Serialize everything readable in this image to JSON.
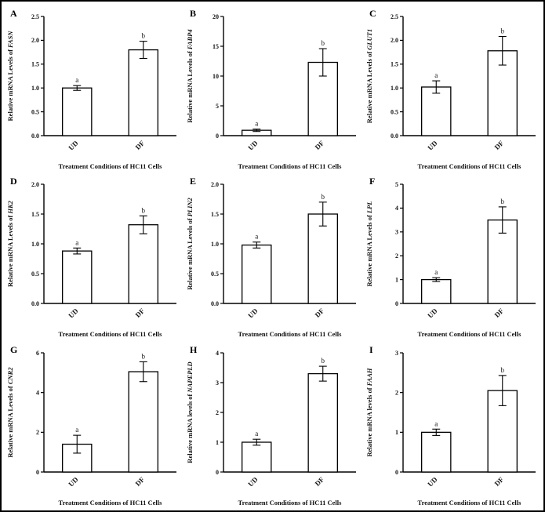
{
  "figure": {
    "type": "multi-panel-bar-figure",
    "xlabel": "Treatment Conditions of HC11 Cells",
    "categories": [
      "UD",
      "DF"
    ],
    "bar_fill": "#ffffff",
    "axis_color": "#000000"
  },
  "chart_data": [
    {
      "type": "bar",
      "panel": "A",
      "ylabel_prefix": "Relative mRNA Levels of ",
      "gene": "FASN",
      "xlabel": "Treatment Conditions of HC11 Cells",
      "categories": [
        "UD",
        "DF"
      ],
      "values": [
        1.0,
        1.8
      ],
      "errors": [
        0.05,
        0.18
      ],
      "sig_labels": [
        "a",
        "b"
      ],
      "ylim": [
        0,
        2.5
      ],
      "ytick_step": 0.5,
      "ytick_decimals": 1
    },
    {
      "type": "bar",
      "panel": "B",
      "ylabel_prefix": "Relative mRNA Levels of ",
      "gene": "FABP4",
      "xlabel": "Treatment Conditions of HC11 Cells",
      "categories": [
        "UD",
        "DF"
      ],
      "values": [
        0.9,
        12.3
      ],
      "errors": [
        0.2,
        2.3
      ],
      "sig_labels": [
        "a",
        "b"
      ],
      "ylim": [
        0,
        20
      ],
      "ytick_step": 5,
      "ytick_decimals": 0
    },
    {
      "type": "bar",
      "panel": "C",
      "ylabel_prefix": "Relative mRNA Levels of ",
      "gene": "GLUT1",
      "xlabel": "Treatment Conditions of HC11 Cells",
      "categories": [
        "UD",
        "DF"
      ],
      "values": [
        1.02,
        1.78
      ],
      "errors": [
        0.13,
        0.3
      ],
      "sig_labels": [
        "a",
        "b"
      ],
      "ylim": [
        0,
        2.5
      ],
      "ytick_step": 0.5,
      "ytick_decimals": 1
    },
    {
      "type": "bar",
      "panel": "D",
      "ylabel_prefix": "Relative mRNA Levels of ",
      "gene": "HK2",
      "xlabel": "Treatment Conditions of HC11 Cells",
      "categories": [
        "UD",
        "DF"
      ],
      "values": [
        0.88,
        1.32
      ],
      "errors": [
        0.05,
        0.15
      ],
      "sig_labels": [
        "a",
        "b"
      ],
      "ylim": [
        0,
        2.0
      ],
      "ytick_step": 0.5,
      "ytick_decimals": 1
    },
    {
      "type": "bar",
      "panel": "E",
      "ylabel_prefix": "Relative mRNA Levels of ",
      "gene": "PLIN2",
      "xlabel": "Treatment Conditions of HC11 Cells",
      "categories": [
        "UD",
        "DF"
      ],
      "values": [
        0.98,
        1.5
      ],
      "errors": [
        0.05,
        0.2
      ],
      "sig_labels": [
        "a",
        "b"
      ],
      "ylim": [
        0,
        2.0
      ],
      "ytick_step": 0.5,
      "ytick_decimals": 1
    },
    {
      "type": "bar",
      "panel": "F",
      "ylabel_prefix": "Relative mRNA Levels of ",
      "gene": "LPL",
      "xlabel": "Treatment Conditions of HC11 Cells",
      "categories": [
        "UD",
        "DF"
      ],
      "values": [
        1.0,
        3.5
      ],
      "errors": [
        0.08,
        0.55
      ],
      "sig_labels": [
        "a",
        "b"
      ],
      "ylim": [
        0,
        5
      ],
      "ytick_step": 1,
      "ytick_decimals": 0
    },
    {
      "type": "bar",
      "panel": "G",
      "ylabel_prefix": "Relative mRNA Levels of ",
      "gene": "CNR2",
      "xlabel": "Treatment Conditions of HC11 Cells",
      "categories": [
        "UD",
        "DF"
      ],
      "values": [
        1.4,
        5.05
      ],
      "errors": [
        0.45,
        0.5
      ],
      "sig_labels": [
        "a",
        "b"
      ],
      "ylim": [
        0,
        6
      ],
      "ytick_step": 2,
      "ytick_decimals": 0
    },
    {
      "type": "bar",
      "panel": "H",
      "ylabel_prefix": "Relative mRNA levels of ",
      "gene": "NAPEPLD",
      "xlabel": "Treatment Conditions of HC11 Cells",
      "categories": [
        "UD",
        "DF"
      ],
      "values": [
        1.0,
        3.3
      ],
      "errors": [
        0.1,
        0.25
      ],
      "sig_labels": [
        "a",
        "b"
      ],
      "ylim": [
        0,
        4
      ],
      "ytick_step": 1,
      "ytick_decimals": 0
    },
    {
      "type": "bar",
      "panel": "I",
      "ylabel_prefix": "Relative mRNA levels of ",
      "gene": "FAAH",
      "xlabel": "Treatment Conditions of HC11 Cells",
      "categories": [
        "UD",
        "DF"
      ],
      "values": [
        1.0,
        2.05
      ],
      "errors": [
        0.08,
        0.38
      ],
      "sig_labels": [
        "a",
        "b"
      ],
      "ylim": [
        0,
        3
      ],
      "ytick_step": 1,
      "ytick_decimals": 0
    }
  ]
}
